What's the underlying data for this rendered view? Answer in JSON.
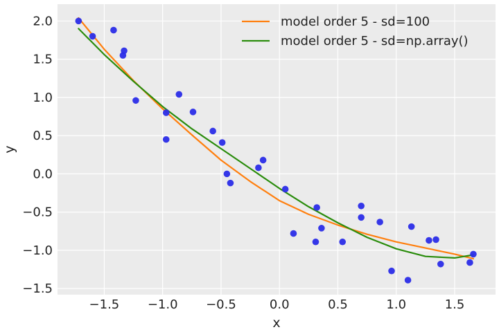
{
  "chart_data": {
    "type": "scatter",
    "title": "",
    "xlabel": "x",
    "ylabel": "y",
    "xlim": [
      -1.9,
      1.85
    ],
    "ylim": [
      -1.58,
      2.22
    ],
    "xticks": [
      -1.5,
      -1.0,
      -0.5,
      0.0,
      0.5,
      1.0,
      1.5
    ],
    "xtick_labels": [
      "−1.5",
      "−1.0",
      "−0.5",
      "0.0",
      "0.5",
      "1.0",
      "1.5"
    ],
    "yticks": [
      -1.5,
      -1.0,
      -0.5,
      0.0,
      0.5,
      1.0,
      1.5,
      2.0
    ],
    "ytick_labels": [
      "−1.5",
      "−1.0",
      "−0.5",
      "0.0",
      "0.5",
      "1.0",
      "1.5",
      "2.0"
    ],
    "grid": true,
    "legend_position": "top-right",
    "background": "#ebebeb",
    "points": {
      "color": "#2b2de8",
      "x": [
        -1.72,
        -1.6,
        -1.42,
        -1.34,
        -1.33,
        -1.23,
        -0.97,
        -0.97,
        -0.86,
        -0.74,
        -0.57,
        -0.49,
        -0.45,
        -0.42,
        -0.18,
        -0.14,
        0.05,
        0.12,
        0.31,
        0.32,
        0.36,
        0.54,
        0.7,
        0.7,
        0.86,
        0.96,
        1.1,
        1.13,
        1.28,
        1.34,
        1.38,
        1.63,
        1.66
      ],
      "y": [
        2.0,
        1.8,
        1.88,
        1.55,
        1.61,
        0.96,
        0.8,
        0.45,
        1.04,
        0.81,
        0.56,
        0.41,
        0.0,
        -0.12,
        0.08,
        0.18,
        -0.2,
        -0.78,
        -0.89,
        -0.44,
        -0.71,
        -0.89,
        -0.42,
        -0.57,
        -0.63,
        -1.27,
        -1.39,
        -0.69,
        -0.87,
        -0.86,
        -1.18,
        -1.16,
        -1.05
      ]
    },
    "series": [
      {
        "name": "model order 5 - sd=100",
        "color": "#ff7f0e",
        "x": [
          -1.72,
          -1.5,
          -1.25,
          -1.0,
          -0.75,
          -0.5,
          -0.25,
          0.0,
          0.25,
          0.5,
          0.75,
          1.0,
          1.25,
          1.5,
          1.66
        ],
        "y": [
          2.04,
          1.63,
          1.22,
          0.85,
          0.51,
          0.18,
          -0.1,
          -0.35,
          -0.53,
          -0.67,
          -0.79,
          -0.89,
          -0.97,
          -1.05,
          -1.11
        ]
      },
      {
        "name": "model order 5 - sd=np.array()",
        "color": "#2a8c0c",
        "x": [
          -1.72,
          -1.5,
          -1.25,
          -1.0,
          -0.75,
          -0.5,
          -0.25,
          0.0,
          0.25,
          0.5,
          0.75,
          1.0,
          1.25,
          1.5,
          1.66
        ],
        "y": [
          1.9,
          1.56,
          1.21,
          0.88,
          0.59,
          0.33,
          0.07,
          -0.19,
          -0.43,
          -0.64,
          -0.83,
          -0.98,
          -1.08,
          -1.1,
          -1.06
        ]
      }
    ]
  }
}
